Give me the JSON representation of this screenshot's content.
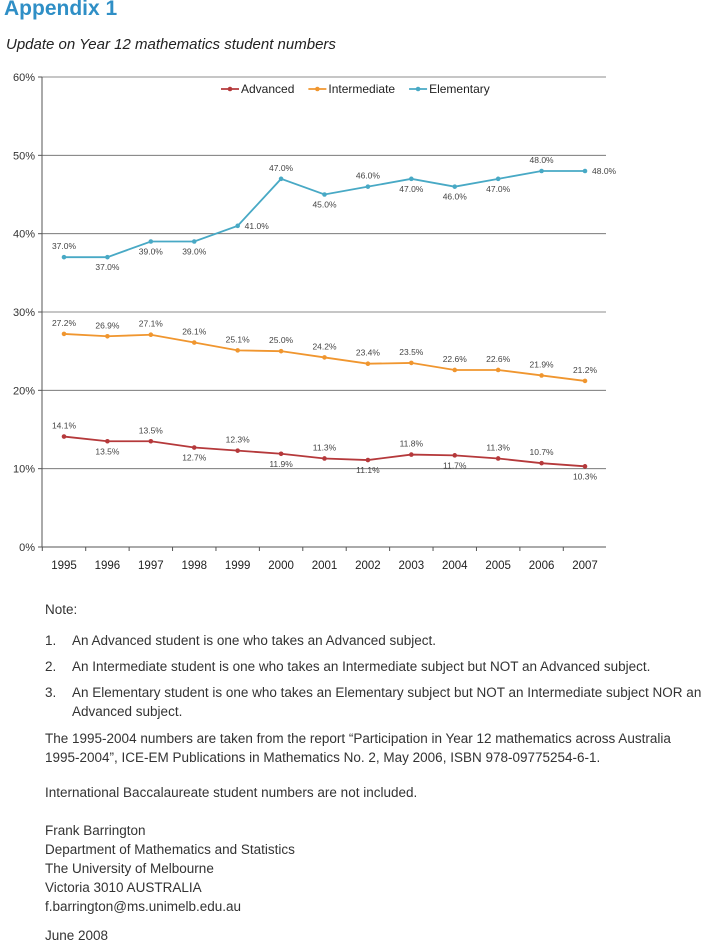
{
  "appendix_title": "Appendix 1",
  "subtitle": "Update on Year 12 mathematics student numbers",
  "colors": {
    "advanced": "#b5393b",
    "intermediate": "#f0962f",
    "elementary": "#48a9c5",
    "heading": "#2f8fc6"
  },
  "chart_data": {
    "type": "line",
    "x": [
      "1995",
      "1996",
      "1997",
      "1998",
      "1999",
      "2000",
      "2001",
      "2002",
      "2003",
      "2004",
      "2005",
      "2006",
      "2007"
    ],
    "yticks": [
      "0%",
      "10%",
      "20%",
      "30%",
      "40%",
      "50%",
      "60%"
    ],
    "ylim": [
      0,
      60
    ],
    "grid": true,
    "legend_position": "top-center",
    "series": [
      {
        "name": "Advanced",
        "color": "#b5393b",
        "values": [
          14.1,
          13.5,
          13.5,
          12.7,
          12.3,
          11.9,
          11.3,
          11.1,
          11.8,
          11.7,
          11.3,
          10.7,
          10.3
        ],
        "labels": [
          "14.1%",
          "13.5%",
          "13.5%",
          "12.7%",
          "12.3%",
          "11.9%",
          "11.3%",
          "11.1%",
          "11.8%",
          "11.7%",
          "11.3%",
          "10.7%",
          "10.3%"
        ]
      },
      {
        "name": "Intermediate",
        "color": "#f0962f",
        "values": [
          27.2,
          26.9,
          27.1,
          26.1,
          25.1,
          25.0,
          24.2,
          23.4,
          23.5,
          22.6,
          22.6,
          21.9,
          21.2
        ],
        "labels": [
          "27.2%",
          "26.9%",
          "27.1%",
          "26.1%",
          "25.1%",
          "25.0%",
          "24.2%",
          "23.4%",
          "23.5%",
          "22.6%",
          "22.6%",
          "21.9%",
          "21.2%"
        ]
      },
      {
        "name": "Elementary",
        "color": "#48a9c5",
        "values": [
          37.0,
          37.0,
          39.0,
          39.0,
          41.0,
          47.0,
          45.0,
          46.0,
          47.0,
          46.0,
          47.0,
          48.0,
          48.0
        ],
        "labels": [
          "37.0%",
          "37.0%",
          "39.0%",
          "39.0%",
          "41.0%",
          "47.0%",
          "45.0%",
          "46.0%",
          "47.0%",
          "46.0%",
          "47.0%",
          "48.0%",
          "48.0%"
        ]
      }
    ]
  },
  "notes": {
    "heading": "Note:",
    "items": [
      {
        "num": "1.",
        "text": "An Advanced student is one who takes an Advanced subject."
      },
      {
        "num": "2.",
        "text": "An Intermediate student is one who takes an Intermediate subject but NOT an Advanced subject."
      },
      {
        "num": "3.",
        "text": "An Elementary student is one who takes an Elementary subject but NOT an Intermediate subject NOR an Advanced subject."
      }
    ],
    "source": "The 1995-2004 numbers are taken from the report “Participation in Year 12 mathematics across Australia 1995-2004”, ICE-EM Publications in Mathematics No. 2, May 2006, ISBN 978-09775254-6-1.",
    "ib": "International Baccalaureate student numbers are not included."
  },
  "signature": {
    "name": "Frank Barrington",
    "department": "Department of Mathematics and Statistics",
    "university": "The University of Melbourne",
    "location": "Victoria 3010 AUSTRALIA",
    "email": "f.barrington@ms.unimelb.edu.au",
    "date": "June 2008"
  }
}
